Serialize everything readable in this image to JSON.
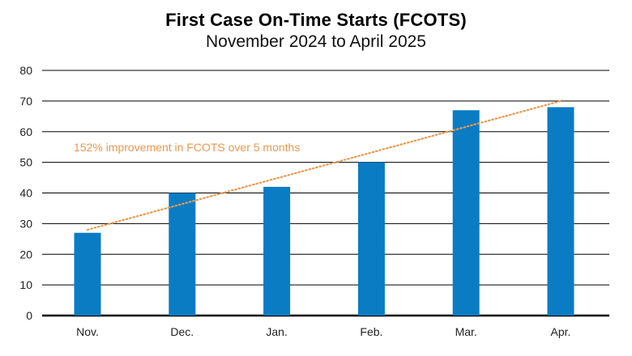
{
  "colors": {
    "bar": "#0A7CC4",
    "trend": "#E89A50",
    "grid": "#000000"
  },
  "chart_data": {
    "type": "bar",
    "title": "First Case On-Time Starts (FCOTS)",
    "subtitle": "November 2024 to April 2025",
    "categories": [
      "Nov.",
      "Dec.",
      "Jan.",
      "Feb.",
      "Mar.",
      "Apr."
    ],
    "values": [
      27,
      40,
      42,
      50,
      67,
      68
    ],
    "ylim": [
      0,
      80
    ],
    "yticks": [
      0,
      10,
      20,
      30,
      40,
      50,
      60,
      70,
      80
    ],
    "grid": true,
    "trendline": {
      "from": 28,
      "to": 70,
      "style": "dotted"
    },
    "annotation": "152% improvement in FCOTS over 5 months"
  }
}
